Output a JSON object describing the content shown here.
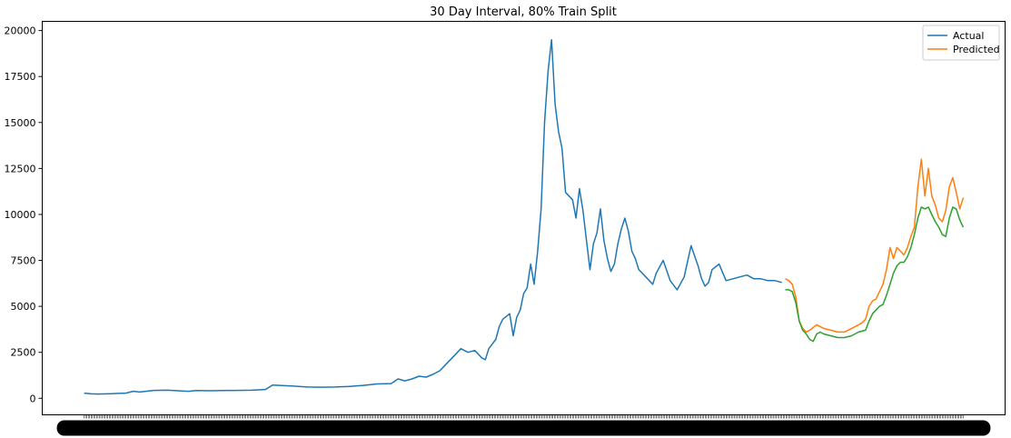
{
  "chart_data": {
    "type": "line",
    "title": "30 Day Interval, 80% Train Split",
    "xlabel": "",
    "ylabel": "",
    "xlim": [
      -60,
      1320
    ],
    "ylim": [
      -900,
      20500
    ],
    "y_ticks": [
      0,
      2500,
      5000,
      7500,
      10000,
      12500,
      15000,
      17500,
      20000
    ],
    "grid": false,
    "legend_position": "top-right",
    "x_tick_labels": "overlapping, illegible",
    "series": [
      {
        "name": "Actual",
        "color": "#1f77b4",
        "x": [
          0,
          10,
          20,
          40,
          60,
          70,
          80,
          100,
          120,
          140,
          150,
          160,
          180,
          200,
          220,
          240,
          260,
          270,
          280,
          300,
          320,
          340,
          360,
          380,
          400,
          420,
          440,
          450,
          460,
          470,
          480,
          490,
          500,
          510,
          520,
          530,
          540,
          550,
          560,
          570,
          575,
          580,
          590,
          595,
          600,
          610,
          615,
          620,
          625,
          630,
          635,
          640,
          645,
          650,
          655,
          660,
          665,
          670,
          675,
          680,
          685,
          690,
          695,
          700,
          705,
          710,
          715,
          720,
          725,
          730,
          735,
          740,
          745,
          750,
          755,
          760,
          765,
          770,
          775,
          780,
          785,
          790,
          795,
          800,
          810,
          815,
          820,
          830,
          840,
          850,
          860,
          870,
          880,
          885,
          890,
          895,
          900,
          910,
          920,
          930,
          940,
          950,
          960,
          970,
          980,
          990,
          1000
        ],
        "y": [
          280,
          240,
          230,
          250,
          280,
          380,
          340,
          430,
          440,
          400,
          380,
          420,
          410,
          420,
          430,
          440,
          480,
          720,
          700,
          660,
          610,
          600,
          610,
          640,
          700,
          780,
          800,
          1050,
          950,
          1050,
          1200,
          1150,
          1300,
          1500,
          1900,
          2300,
          2700,
          2500,
          2600,
          2200,
          2100,
          2700,
          3200,
          3900,
          4300,
          4600,
          3400,
          4400,
          4800,
          5700,
          6000,
          7300,
          6200,
          8000,
          10300,
          15000,
          17800,
          19500,
          16000,
          14500,
          13600,
          11200,
          11000,
          10800,
          9800,
          11400,
          10200,
          8600,
          7000,
          8400,
          9000,
          10300,
          8600,
          7600,
          6900,
          7300,
          8400,
          9200,
          9800,
          9100,
          8000,
          7600,
          7000,
          6800,
          6400,
          6200,
          6800,
          7500,
          6400,
          5900,
          6600,
          8300,
          7200,
          6500,
          6100,
          6300,
          7000,
          7300,
          6400,
          6500,
          6600,
          6700,
          6500,
          6500,
          6400,
          6400,
          6300
        ]
      },
      {
        "name": "Predicted",
        "color": "#ff7f0e",
        "x": [
          1005,
          1010,
          1015,
          1020,
          1025,
          1030,
          1035,
          1040,
          1050,
          1060,
          1070,
          1080,
          1090,
          1100,
          1110,
          1115,
          1120,
          1125,
          1130,
          1135,
          1140,
          1145,
          1150,
          1155,
          1160,
          1165,
          1170,
          1175,
          1180,
          1185,
          1190,
          1195,
          1200,
          1205,
          1210,
          1215,
          1220,
          1225,
          1230,
          1235,
          1240,
          1245,
          1250,
          1255,
          1260
        ],
        "y": [
          6500,
          6400,
          6200,
          5500,
          4200,
          3800,
          3600,
          3700,
          4000,
          3800,
          3700,
          3600,
          3600,
          3800,
          4000,
          4100,
          4300,
          5000,
          5300,
          5400,
          5800,
          6200,
          7000,
          8200,
          7600,
          8200,
          8000,
          7800,
          8200,
          8800,
          9300,
          11500,
          13000,
          11000,
          12500,
          11000,
          10500,
          9800,
          9600,
          10200,
          11500,
          12000,
          11200,
          10300,
          10900
        ]
      },
      {
        "name": "",
        "color": "#2ca02c",
        "x": [
          1005,
          1010,
          1015,
          1020,
          1025,
          1030,
          1035,
          1040,
          1045,
          1050,
          1055,
          1060,
          1070,
          1080,
          1090,
          1100,
          1110,
          1120,
          1125,
          1130,
          1135,
          1140,
          1145,
          1150,
          1155,
          1160,
          1165,
          1170,
          1175,
          1180,
          1185,
          1190,
          1195,
          1200,
          1205,
          1210,
          1215,
          1220,
          1225,
          1230,
          1235,
          1240,
          1245,
          1250,
          1255,
          1260
        ],
        "y": [
          5900,
          5900,
          5800,
          5200,
          4200,
          3700,
          3500,
          3200,
          3100,
          3500,
          3600,
          3500,
          3400,
          3300,
          3300,
          3400,
          3600,
          3700,
          4200,
          4600,
          4800,
          5000,
          5100,
          5600,
          6200,
          6800,
          7200,
          7400,
          7400,
          7700,
          8200,
          8900,
          9800,
          10400,
          10300,
          10400,
          10000,
          9600,
          9300,
          8900,
          8800,
          9800,
          10400,
          10300,
          9700,
          9300
        ]
      }
    ]
  }
}
